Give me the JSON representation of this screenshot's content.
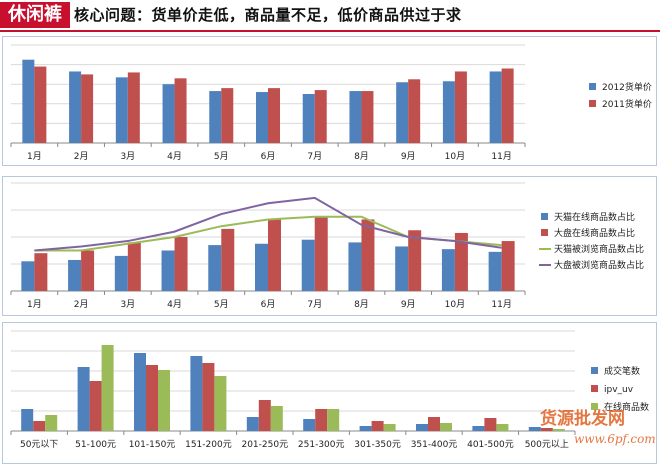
{
  "header": {
    "badge": "休闲裤",
    "title": "核心问题：货单价走低，商品量不足，低价商品供过于求"
  },
  "watermark": {
    "text": "货源批发网",
    "url": "www.6pf.com"
  },
  "colors": {
    "blue": "#4f81bd",
    "red": "#c0504d",
    "green": "#9bbb59",
    "purple": "#8064a2",
    "brand": "#c8102e"
  },
  "chart_data": [
    {
      "type": "bar",
      "categories": [
        "1月",
        "2月",
        "3月",
        "4月",
        "5月",
        "6月",
        "7月",
        "8月",
        "9月",
        "10月",
        "11月"
      ],
      "series": [
        {
          "name": "2012货单价",
          "color": "#4f81bd",
          "values": [
            85,
            73,
            67,
            60,
            53,
            52,
            50,
            53,
            62,
            63,
            73
          ]
        },
        {
          "name": "2011货单价",
          "color": "#c0504d",
          "values": [
            78,
            70,
            72,
            66,
            56,
            56,
            54,
            53,
            65,
            73,
            76
          ]
        }
      ],
      "ylim": [
        0,
        100
      ]
    },
    {
      "type": "bar",
      "categories": [
        "1月",
        "2月",
        "3月",
        "4月",
        "5月",
        "6月",
        "7月",
        "8月",
        "9月",
        "10月",
        "11月"
      ],
      "series": [
        {
          "name": "天猫在线商品数占比",
          "kind": "bar",
          "color": "#4f81bd",
          "values": [
            22,
            23,
            26,
            30,
            34,
            35,
            38,
            36,
            33,
            31,
            29
          ]
        },
        {
          "name": "大盘在线商品数占比",
          "kind": "bar",
          "color": "#c0504d",
          "values": [
            28,
            30,
            36,
            40,
            46,
            53,
            55,
            53,
            45,
            43,
            37
          ]
        },
        {
          "name": "天猫被浏览商品数占比",
          "kind": "line",
          "color": "#9bbb59",
          "values": [
            30,
            30,
            35,
            40,
            48,
            53,
            55,
            55,
            40,
            37,
            34
          ]
        },
        {
          "name": "大盘被浏览商品数占比",
          "kind": "line",
          "color": "#8064a2",
          "values": [
            30,
            33,
            37,
            44,
            57,
            65,
            69,
            49,
            40,
            37,
            32
          ]
        }
      ],
      "ylim": [
        0,
        80
      ]
    },
    {
      "type": "bar",
      "categories": [
        "50元以下",
        "51-100元",
        "101-150元",
        "151-200元",
        "201-250元",
        "251-300元",
        "301-350元",
        "351-400元",
        "401-500元",
        "500元以上"
      ],
      "series": [
        {
          "name": "成交笔数",
          "color": "#4f81bd",
          "values": [
            22,
            64,
            78,
            75,
            14,
            12,
            5,
            7,
            5,
            4
          ]
        },
        {
          "name": "ipv_uv",
          "color": "#c0504d",
          "values": [
            10,
            50,
            66,
            68,
            31,
            22,
            10,
            14,
            13,
            3
          ]
        },
        {
          "name": "在线商品数",
          "color": "#9bbb59",
          "values": [
            16,
            86,
            61,
            55,
            25,
            22,
            7,
            8,
            7,
            2
          ]
        }
      ],
      "ylim": [
        0,
        100
      ]
    }
  ]
}
